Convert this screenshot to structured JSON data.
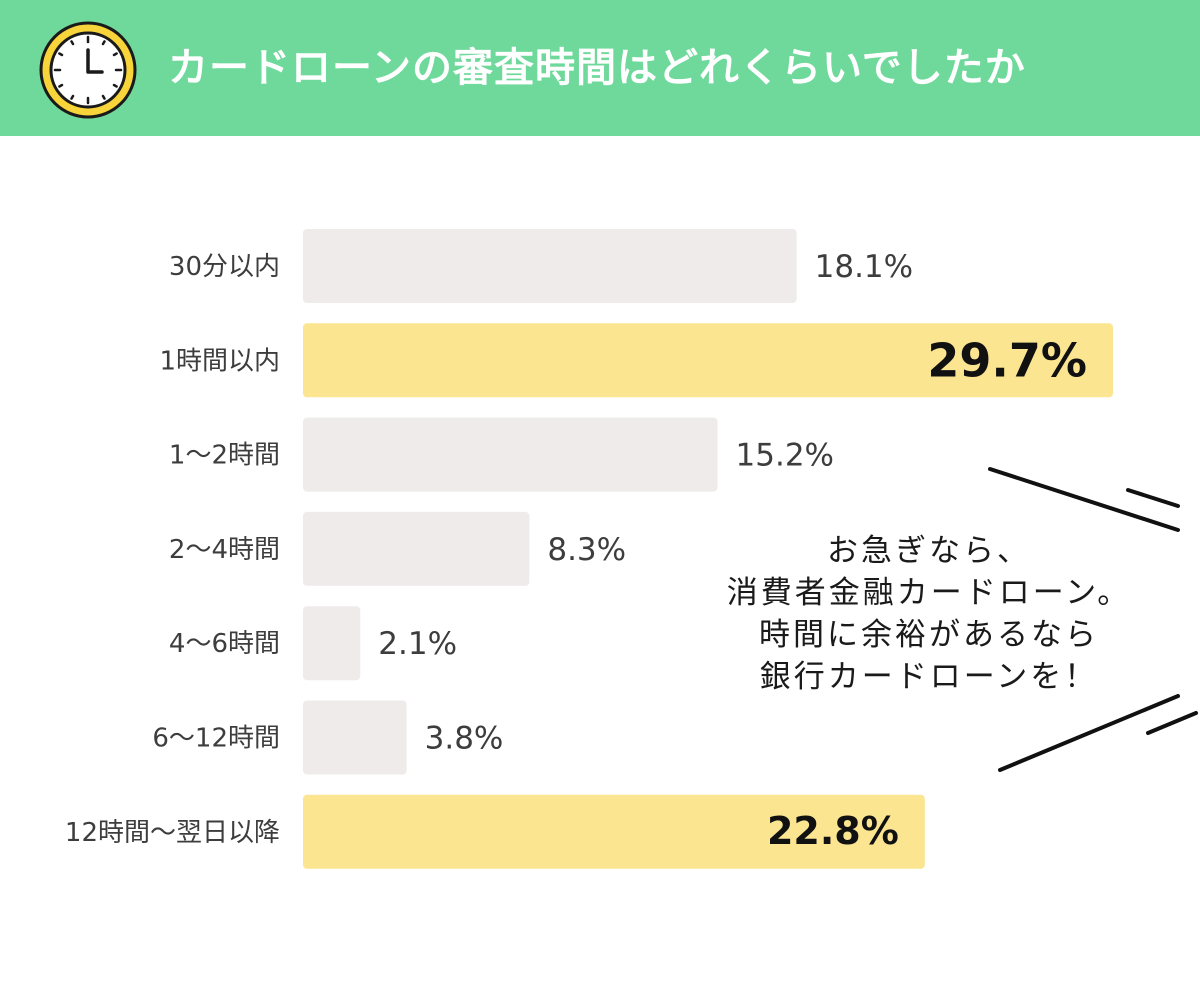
{
  "header": {
    "title": "カードローンの審査時間はどれくらいでしたか",
    "icon": "clock-icon",
    "background_color": "#6fd99b",
    "title_color": "#ffffff"
  },
  "chart_data": {
    "type": "bar",
    "orientation": "horizontal",
    "title": "",
    "xlabel": "",
    "ylabel": "",
    "categories": [
      "30分以内",
      "1時間以内",
      "1〜2時間",
      "2〜4時間",
      "4〜6時間",
      "6〜12時間",
      "12時間〜翌日以降"
    ],
    "values": [
      18.1,
      29.7,
      15.2,
      8.3,
      2.1,
      3.8,
      22.8
    ],
    "labels": [
      "18.1%",
      "29.7%",
      "15.2%",
      "8.3%",
      "2.1%",
      "3.8%",
      "22.8%"
    ],
    "unit": "%",
    "highlighted": [
      false,
      true,
      false,
      false,
      false,
      false,
      true
    ],
    "xlim": [
      0,
      29.7
    ],
    "grid": false,
    "legend": "none",
    "colors": {
      "default": "#efebeb",
      "highlight": "#fbe591"
    }
  },
  "callout": {
    "lines": [
      "お急ぎなら、",
      "消費者金融カードローン。",
      "時間に余裕があるなら",
      "銀行カードローンを！"
    ]
  }
}
